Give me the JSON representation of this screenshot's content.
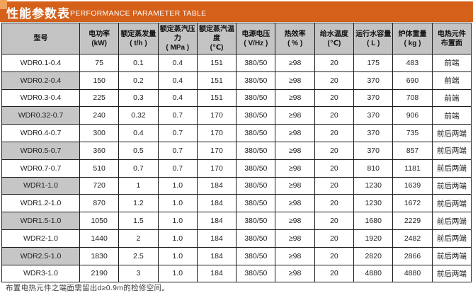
{
  "title": {
    "zh": "性能参数表",
    "en": "PERFORMANCE PARAMETER TABLE"
  },
  "colors": {
    "accent_bar": "#d4601a",
    "accent_corner": "#f0a35c",
    "header_bg": "#c3c3c3",
    "stripe_bg": "#c6c6c6",
    "border": "#1c1c1c"
  },
  "table": {
    "columns": [
      {
        "name": "型号",
        "unit": ""
      },
      {
        "name": "电功率",
        "unit": "(kW)"
      },
      {
        "name": "额定蒸发量",
        "unit": "( t/h )"
      },
      {
        "name": "额定蒸汽压力",
        "unit": "( MPa )"
      },
      {
        "name": "额定蒸汽温度",
        "unit": "(℃)"
      },
      {
        "name": "电源电压",
        "unit": "( V/Hz )"
      },
      {
        "name": "热效率",
        "unit": "( % )"
      },
      {
        "name": "给水温度",
        "unit": "(℃)"
      },
      {
        "name": "运行水容量",
        "unit": "( L )"
      },
      {
        "name": "炉体重量",
        "unit": "( kg )"
      },
      {
        "name": "电热元件",
        "unit": "布置面"
      }
    ],
    "rows": [
      {
        "cells": [
          "WDR0.1-0.4",
          "75",
          "0.1",
          "0.4",
          "151",
          "380/50",
          "≥98",
          "20",
          "175",
          "483",
          "前端"
        ],
        "striped": false
      },
      {
        "cells": [
          "WDR0.2-0.4",
          "150",
          "0.2",
          "0.4",
          "151",
          "380/50",
          "≥98",
          "20",
          "370",
          "690",
          "前端"
        ],
        "striped": true
      },
      {
        "cells": [
          "WDR0.3-0.4",
          "225",
          "0.3",
          "0.4",
          "151",
          "380/50",
          "≥98",
          "20",
          "370",
          "708",
          "前端"
        ],
        "striped": false
      },
      {
        "cells": [
          "WDR0.32-0.7",
          "240",
          "0.32",
          "0.7",
          "170",
          "380/50",
          "≥98",
          "20",
          "370",
          "906",
          "前端"
        ],
        "striped": true
      },
      {
        "cells": [
          "WDR0.4-0.7",
          "300",
          "0.4",
          "0.7",
          "170",
          "380/50",
          "≥98",
          "20",
          "370",
          "735",
          "前后两端"
        ],
        "striped": false
      },
      {
        "cells": [
          "WDR0.5-0.7",
          "360",
          "0.5",
          "0.7",
          "170",
          "380/50",
          "≥98",
          "20",
          "370",
          "857",
          "前后两端"
        ],
        "striped": true
      },
      {
        "cells": [
          "WDR0.7-0.7",
          "510",
          "0.7",
          "0.7",
          "170",
          "380/50",
          "≥98",
          "20",
          "810",
          "1181",
          "前后两端"
        ],
        "striped": false
      },
      {
        "cells": [
          "WDR1-1.0",
          "720",
          "1",
          "1.0",
          "184",
          "380/50",
          "≥98",
          "20",
          "1230",
          "1639",
          "前后两端"
        ],
        "striped": true
      },
      {
        "cells": [
          "WDR1.2-1.0",
          "870",
          "1.2",
          "1.0",
          "184",
          "380/50",
          "≥98",
          "20",
          "1230",
          "1672",
          "前后两端"
        ],
        "striped": false
      },
      {
        "cells": [
          "WDR1.5-1.0",
          "1050",
          "1.5",
          "1.0",
          "184",
          "380/50",
          "≥98",
          "20",
          "1680",
          "2229",
          "前后两端"
        ],
        "striped": true
      },
      {
        "cells": [
          "WDR2-1.0",
          "1440",
          "2",
          "1.0",
          "184",
          "380/50",
          "≥98",
          "20",
          "1920",
          "2482",
          "前后两端"
        ],
        "striped": false
      },
      {
        "cells": [
          "WDR2.5-1.0",
          "1830",
          "2.5",
          "1.0",
          "184",
          "380/50",
          "≥98",
          "20",
          "2820",
          "2866",
          "前后两端"
        ],
        "striped": true
      },
      {
        "cells": [
          "WDR3-1.0",
          "2190",
          "3",
          "1.0",
          "184",
          "380/50",
          "≥98",
          "20",
          "4880",
          "4880",
          "前后两端"
        ],
        "striped": false
      }
    ]
  },
  "footer": {
    "note": "布置电热元件之端面需留出d≥0.9m的检修空间。"
  }
}
